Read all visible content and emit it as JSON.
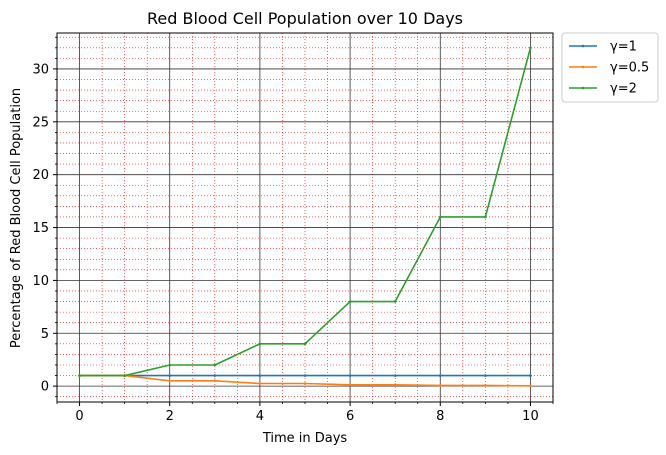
{
  "chart_data": {
    "type": "line",
    "title": "Red Blood Cell Population over 10 Days",
    "xlabel": "Time in Days",
    "ylabel": "Percentage of Red Blood Cell Population",
    "xlim": [
      -0.5,
      10.5
    ],
    "ylim": [
      -1.5,
      33.4
    ],
    "x_ticks": [
      0,
      2,
      4,
      6,
      8,
      10
    ],
    "y_ticks": [
      0,
      5,
      10,
      15,
      20,
      25,
      30
    ],
    "grid": "major and minor",
    "legend_position": "outside top-right",
    "x": [
      0,
      1,
      2,
      3,
      4,
      5,
      6,
      7,
      8,
      9,
      10
    ],
    "series": [
      {
        "name": "γ=1",
        "color": "#1f77b4",
        "values": [
          1,
          1,
          1,
          1,
          1,
          1,
          1,
          1,
          1,
          1,
          1
        ]
      },
      {
        "name": "γ=0.5",
        "color": "#ff7f0e",
        "values": [
          1,
          1,
          0.5,
          0.5,
          0.25,
          0.25,
          0.125,
          0.125,
          0.0625,
          0.0625,
          0.03
        ]
      },
      {
        "name": "γ=2",
        "color": "#2ca02c",
        "values": [
          1,
          1,
          2,
          2,
          4,
          4,
          8,
          8,
          16,
          16,
          32
        ]
      }
    ]
  }
}
